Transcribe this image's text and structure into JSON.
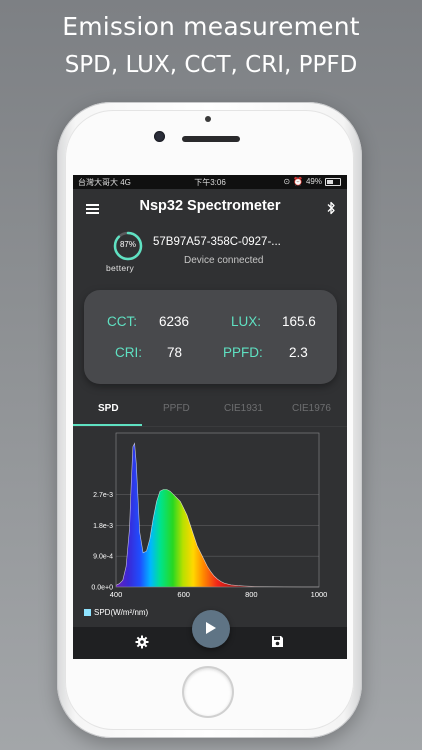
{
  "headline": {
    "line1": "Emission measurement",
    "line2": "SPD, LUX, CCT, CRI, PPFD"
  },
  "status_bar": {
    "carrier": "台灣大哥大  4G",
    "time": "下午3:06",
    "battery_pct": "49%"
  },
  "app": {
    "title": "Nsp32 Spectrometer",
    "menu_icon": "hamburger-icon",
    "bluetooth_icon": "bluetooth-icon"
  },
  "device": {
    "battery_text": "87%",
    "battery_fraction": 0.87,
    "battery_label": "bettery",
    "id": "57B97A57-358C-0927-...",
    "status": "Device connected"
  },
  "metrics": {
    "cct_label": "CCT:",
    "cct_value": "6236",
    "lux_label": "LUX:",
    "lux_value": "165.6",
    "cri_label": "CRI:",
    "cri_value": "78",
    "ppfd_label": "PPFD:",
    "ppfd_value": "2.3"
  },
  "tabs": [
    {
      "label": "SPD",
      "active": true
    },
    {
      "label": "PPFD",
      "active": false
    },
    {
      "label": "CIE1931",
      "active": false
    },
    {
      "label": "CIE1976",
      "active": false
    }
  ],
  "colors": {
    "accent": "#5fe1c2",
    "background": "#303133",
    "card": "#48494c",
    "fab": "#5f7485"
  },
  "chart_data": {
    "type": "area",
    "xlabel": "",
    "ylabel": "",
    "legend": "SPD(W/m²/nm)",
    "legend_position": "bottom-left",
    "xlim": [
      400,
      1000
    ],
    "ylim": [
      0,
      0.0045
    ],
    "x_ticks": [
      "400",
      "600",
      "800",
      "1000"
    ],
    "y_ticks": [
      "0.0e+0",
      "9.0e-4",
      "1.8e-3",
      "2.7e-3"
    ],
    "grid": true,
    "series": [
      {
        "name": "SPD(W/m²/nm)",
        "x": [
          400,
          410,
          420,
          430,
          440,
          445,
          450,
          455,
          460,
          465,
          470,
          480,
          490,
          500,
          510,
          520,
          530,
          540,
          550,
          560,
          570,
          580,
          590,
          600,
          610,
          620,
          630,
          640,
          650,
          660,
          670,
          680,
          690,
          700,
          710,
          720,
          740,
          760,
          780,
          800,
          850,
          900,
          950,
          1000
        ],
        "y": [
          5e-05,
          0.0001,
          0.0002,
          0.0006,
          0.0017,
          0.003,
          0.0041,
          0.0042,
          0.0036,
          0.0026,
          0.0016,
          0.001,
          0.00105,
          0.0014,
          0.002,
          0.0025,
          0.0028,
          0.00285,
          0.00285,
          0.0028,
          0.0027,
          0.0026,
          0.0025,
          0.0023,
          0.0021,
          0.0018,
          0.0015,
          0.0012,
          0.001,
          0.0008,
          0.0006,
          0.00045,
          0.00032,
          0.00023,
          0.00016,
          0.00011,
          6e-05,
          4e-05,
          3e-05,
          2e-05,
          1e-05,
          5e-06,
          3e-06,
          2e-06
        ]
      }
    ]
  },
  "bottom_bar": {
    "settings_icon": "gear-icon",
    "play_icon": "play-icon",
    "save_icon": "save-icon"
  }
}
